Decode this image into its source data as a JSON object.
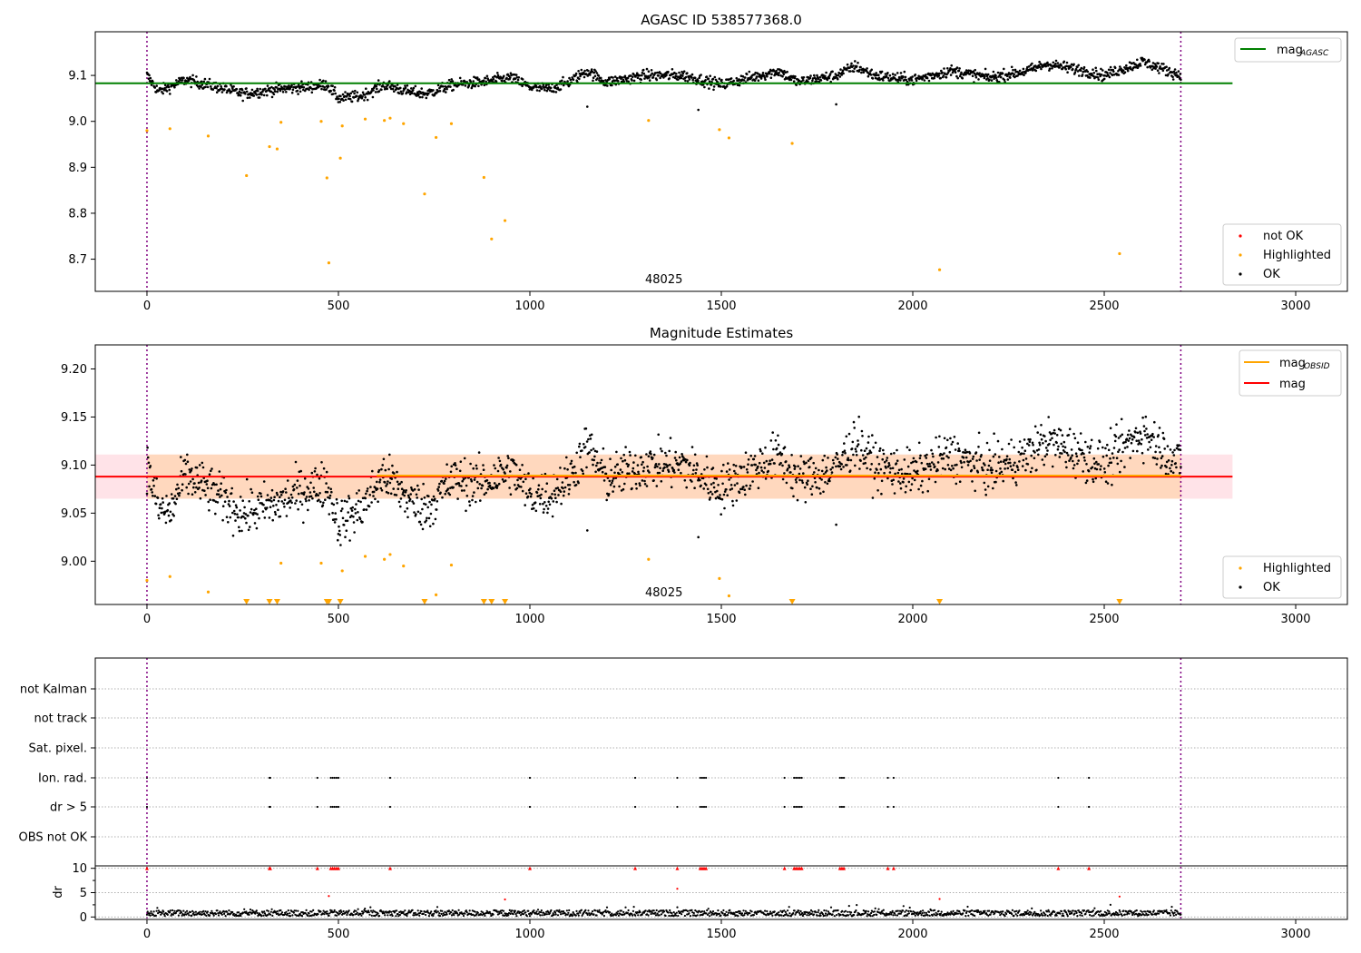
{
  "chart_data": [
    {
      "type": "scatter",
      "title": "AGASC ID 538577368.0",
      "xlim": [
        -135,
        3135
      ],
      "ylim": [
        8.63,
        9.195
      ],
      "x_ticks": [
        0,
        500,
        1000,
        1500,
        2000,
        2500,
        3000
      ],
      "y_ticks": [
        8.7,
        8.8,
        8.9,
        9.0,
        9.1
      ],
      "y_tick_labels": [
        "8.7",
        "8.8",
        "8.9",
        "9.0",
        "9.1"
      ],
      "obsid_label": "48025",
      "obsid_label_x": 1350,
      "obs_bounds": [
        0,
        2700
      ],
      "mag_agasc": 9.083,
      "mag_agasc_xrange": [
        -135,
        2835
      ],
      "ok_track": {
        "x_range": [
          0,
          2700
        ],
        "anchors": [
          [
            0,
            9.1
          ],
          [
            30,
            9.065
          ],
          [
            100,
            9.09
          ],
          [
            160,
            9.08
          ],
          [
            250,
            9.06
          ],
          [
            340,
            9.07
          ],
          [
            420,
            9.075
          ],
          [
            470,
            9.08
          ],
          [
            500,
            9.05
          ],
          [
            560,
            9.055
          ],
          [
            620,
            9.08
          ],
          [
            680,
            9.065
          ],
          [
            730,
            9.06
          ],
          [
            800,
            9.08
          ],
          [
            870,
            9.085
          ],
          [
            950,
            9.095
          ],
          [
            1000,
            9.075
          ],
          [
            1050,
            9.07
          ],
          [
            1100,
            9.085
          ],
          [
            1150,
            9.11
          ],
          [
            1200,
            9.085
          ],
          [
            1300,
            9.1
          ],
          [
            1400,
            9.1
          ],
          [
            1500,
            9.08
          ],
          [
            1600,
            9.1
          ],
          [
            1650,
            9.11
          ],
          [
            1700,
            9.085
          ],
          [
            1800,
            9.1
          ],
          [
            1850,
            9.12
          ],
          [
            1900,
            9.1
          ],
          [
            2000,
            9.09
          ],
          [
            2100,
            9.11
          ],
          [
            2200,
            9.095
          ],
          [
            2300,
            9.11
          ],
          [
            2350,
            9.125
          ],
          [
            2450,
            9.11
          ],
          [
            2500,
            9.1
          ],
          [
            2600,
            9.13
          ],
          [
            2700,
            9.1
          ]
        ],
        "spread": 0.006,
        "count": 1800,
        "outliers": [
          [
            1150,
            9.032
          ],
          [
            1440,
            9.025
          ],
          [
            1800,
            9.037
          ]
        ]
      },
      "highlighted": [
        [
          0,
          8.98
        ],
        [
          60,
          8.984
        ],
        [
          160,
          8.968
        ],
        [
          260,
          8.882
        ],
        [
          320,
          8.945
        ],
        [
          340,
          8.94
        ],
        [
          350,
          8.998
        ],
        [
          455,
          9.0
        ],
        [
          470,
          8.877
        ],
        [
          475,
          8.692
        ],
        [
          505,
          8.92
        ],
        [
          510,
          8.99
        ],
        [
          570,
          9.005
        ],
        [
          620,
          9.002
        ],
        [
          635,
          9.007
        ],
        [
          670,
          8.995
        ],
        [
          725,
          8.842
        ],
        [
          755,
          8.965
        ],
        [
          795,
          8.995
        ],
        [
          880,
          8.878
        ],
        [
          900,
          8.744
        ],
        [
          935,
          8.784
        ],
        [
          1310,
          9.002
        ],
        [
          1495,
          8.982
        ],
        [
          1520,
          8.964
        ],
        [
          1685,
          8.952
        ],
        [
          2070,
          8.677
        ],
        [
          2540,
          8.712
        ]
      ],
      "not_ok": [],
      "legend_top": [
        {
          "label": "mag",
          "sub": "AGASC",
          "color": "#008000"
        }
      ],
      "legend_bottom": [
        {
          "label": "not OK",
          "color": "#ff0000"
        },
        {
          "label": "Highlighted",
          "color": "#ffa500"
        },
        {
          "label": "OK",
          "color": "#000000"
        }
      ]
    },
    {
      "type": "scatter",
      "title": "Magnitude Estimates",
      "xlim": [
        -135,
        3135
      ],
      "ylim": [
        8.955,
        9.225
      ],
      "x_ticks": [
        0,
        500,
        1000,
        1500,
        2000,
        2500,
        3000
      ],
      "y_ticks": [
        9.0,
        9.05,
        9.1,
        9.15,
        9.2
      ],
      "y_tick_labels": [
        "9.00",
        "9.05",
        "9.10",
        "9.15",
        "9.20"
      ],
      "obsid_label": "48025",
      "obsid_label_x": 1350,
      "obs_bounds": [
        0,
        2700
      ],
      "mag": 9.088,
      "mag_band": [
        9.065,
        9.111
      ],
      "mag_obsid": 9.089,
      "mag_xrange": [
        -135,
        2835
      ],
      "mag_obsid_xrange": [
        600,
        2700
      ],
      "ok_track": {
        "x_range": [
          0,
          2700
        ],
        "anchors": [
          [
            0,
            9.1
          ],
          [
            30,
            9.055
          ],
          [
            60,
            9.05
          ],
          [
            100,
            9.09
          ],
          [
            160,
            9.075
          ],
          [
            250,
            9.05
          ],
          [
            340,
            9.06
          ],
          [
            420,
            9.075
          ],
          [
            470,
            9.08
          ],
          [
            500,
            9.04
          ],
          [
            560,
            9.055
          ],
          [
            620,
            9.09
          ],
          [
            680,
            9.065
          ],
          [
            730,
            9.055
          ],
          [
            800,
            9.085
          ],
          [
            870,
            9.08
          ],
          [
            950,
            9.095
          ],
          [
            1000,
            9.07
          ],
          [
            1050,
            9.07
          ],
          [
            1100,
            9.085
          ],
          [
            1150,
            9.12
          ],
          [
            1200,
            9.085
          ],
          [
            1300,
            9.1
          ],
          [
            1400,
            9.1
          ],
          [
            1500,
            9.075
          ],
          [
            1600,
            9.1
          ],
          [
            1650,
            9.11
          ],
          [
            1700,
            9.085
          ],
          [
            1800,
            9.095
          ],
          [
            1850,
            9.125
          ],
          [
            1900,
            9.1
          ],
          [
            2000,
            9.09
          ],
          [
            2100,
            9.11
          ],
          [
            2200,
            9.095
          ],
          [
            2300,
            9.11
          ],
          [
            2350,
            9.125
          ],
          [
            2450,
            9.11
          ],
          [
            2500,
            9.1
          ],
          [
            2600,
            9.135
          ],
          [
            2700,
            9.1
          ]
        ],
        "spread": 0.012,
        "count": 1800,
        "outliers": [
          [
            1150,
            9.032
          ],
          [
            1440,
            9.025
          ],
          [
            1800,
            9.038
          ]
        ]
      },
      "highlighted": [
        [
          0,
          8.98
        ],
        [
          60,
          8.984
        ],
        [
          160,
          8.968
        ],
        [
          350,
          8.998
        ],
        [
          455,
          8.998
        ],
        [
          510,
          8.99
        ],
        [
          570,
          9.005
        ],
        [
          620,
          9.002
        ],
        [
          635,
          9.007
        ],
        [
          670,
          8.995
        ],
        [
          755,
          8.965
        ],
        [
          795,
          8.996
        ],
        [
          1310,
          9.002
        ],
        [
          1495,
          8.982
        ],
        [
          1520,
          8.964
        ]
      ],
      "below_range_markers": [
        260,
        320,
        340,
        470,
        475,
        505,
        725,
        880,
        900,
        935,
        1685,
        2070,
        2540
      ],
      "legend_top": [
        {
          "label": "mag",
          "sub": "OBSID",
          "color": "#ffa500"
        },
        {
          "label": "mag",
          "sub": "",
          "color": "#ff0000"
        }
      ],
      "legend_bottom": [
        {
          "label": "Highlighted",
          "color": "#ffa500"
        },
        {
          "label": "OK",
          "color": "#000000"
        }
      ]
    },
    {
      "type": "scatter",
      "title": "",
      "xlim": [
        -135,
        3135
      ],
      "obs_bounds": [
        0,
        2700
      ],
      "flag_rows": [
        "not Kalman",
        "not track",
        "Sat. pixel.",
        "Ion. rad.",
        "dr > 5",
        "OBS not OK"
      ],
      "flag_events": {
        "Ion. rad.": [
          0,
          320,
          322,
          445,
          480,
          485,
          490,
          495,
          500,
          635,
          1000,
          1275,
          1385,
          1445,
          1450,
          1455,
          1460,
          1665,
          1690,
          1695,
          1700,
          1705,
          1710,
          1810,
          1815,
          1820,
          1935,
          1950,
          2380,
          2460
        ],
        "dr > 5": [
          0,
          320,
          322,
          445,
          480,
          485,
          490,
          495,
          500,
          635,
          1000,
          1275,
          1385,
          1445,
          1450,
          1455,
          1460,
          1665,
          1690,
          1695,
          1700,
          1705,
          1710,
          1810,
          1815,
          1820,
          1935,
          1950,
          2380,
          2460
        ]
      },
      "dr": {
        "ylabel": "dr",
        "ylim": [
          -0.5,
          10.5
        ],
        "y_ticks": [
          0,
          5,
          10
        ],
        "y_tick_labels": [
          "0",
          "5",
          "10"
        ],
        "baseline_range": [
          0.2,
          1.4
        ],
        "count": 1500,
        "clipped_at_10": [
          0,
          320,
          322,
          445,
          480,
          485,
          490,
          495,
          500,
          635,
          1000,
          1275,
          1385,
          1445,
          1450,
          1455,
          1460,
          1665,
          1690,
          1695,
          1700,
          1705,
          1710,
          1810,
          1815,
          1820,
          1935,
          1950,
          2380,
          2460
        ],
        "red_points": [
          [
            475,
            4.3
          ],
          [
            935,
            3.6
          ],
          [
            1385,
            5.8
          ],
          [
            2070,
            3.7
          ],
          [
            2540,
            4.2
          ]
        ],
        "x_ticks": [
          0,
          500,
          1000,
          1500,
          2000,
          2500,
          3000
        ]
      }
    }
  ]
}
